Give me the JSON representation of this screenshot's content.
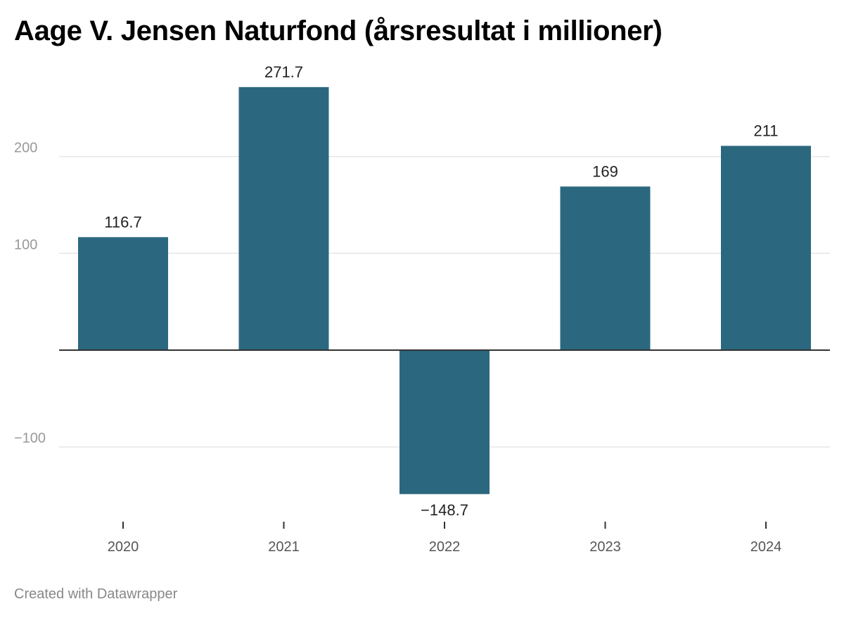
{
  "chart_data": {
    "type": "bar",
    "title": "Aage V. Jensen Naturfond (årsresultat i millioner)",
    "categories": [
      "2020",
      "2021",
      "2022",
      "2023",
      "2024"
    ],
    "values": [
      116.7,
      271.7,
      -148.7,
      169,
      211
    ],
    "value_labels": [
      "116.7",
      "271.7",
      "−148.7",
      "169",
      "211"
    ],
    "y_ticks": [
      {
        "value": -100,
        "label": "−100"
      },
      {
        "value": 100,
        "label": "100"
      },
      {
        "value": 200,
        "label": "200"
      }
    ],
    "ylim": [
      -170,
      290
    ],
    "grid": true,
    "xlabel": "",
    "ylabel": "",
    "colors": {
      "bar": "#2b6880",
      "grid": "#e5e5e5",
      "zero_line": "#333333",
      "tick_label": "#999999",
      "category_label": "#555555",
      "value_label": "#222222"
    }
  },
  "footer": "Created with Datawrapper"
}
